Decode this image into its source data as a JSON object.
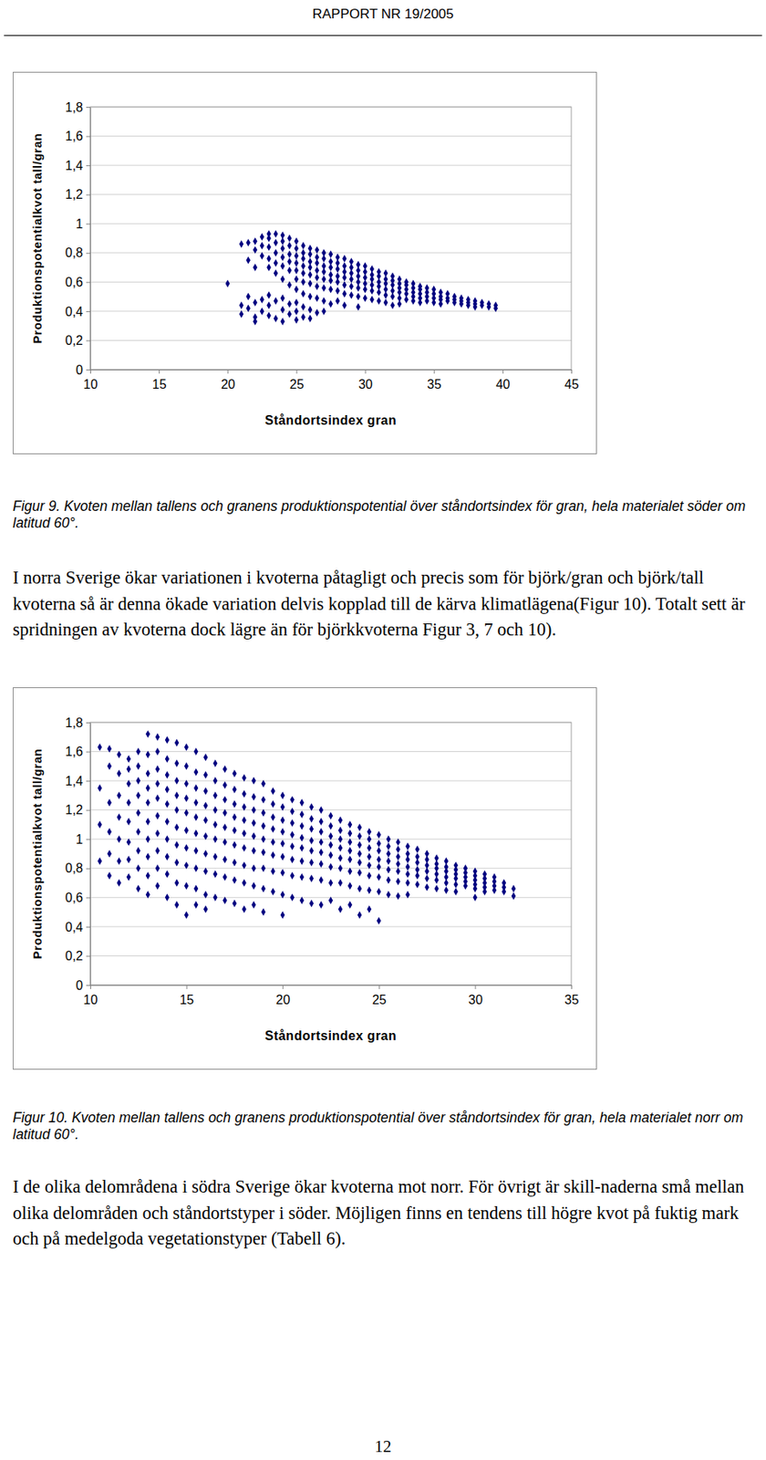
{
  "header": "RAPPORT NR 19/2005",
  "captions": [
    "Figur 9. Kvoten mellan tallens och granens produktionspotential över ståndortsindex för gran, hela materialet söder om latitud 60°.",
    "Figur 10. Kvoten mellan tallens och granens produktionspotential över ståndortsindex för gran, hela materialet norr om latitud 60°."
  ],
  "paragraphs": [
    "I norra Sverige ökar variationen i kvoterna påtagligt och precis som för björk/gran och björk/tall kvoterna så är denna ökade variation delvis kopplad till de kärva klimatlägena(Figur 10). Totalt sett är spridningen av kvoterna dock lägre än för björkkvoterna Figur 3, 7 och 10).",
    "I de olika delområdena i södra Sverige ökar kvoterna mot norr. För övrigt är skill-naderna små mellan olika delområden och ståndortstyper i söder. Möjligen finns en tendens till högre kvot på fuktig mark och på medelgoda vegetationstyper (Tabell 6)."
  ],
  "page_number": 12,
  "chart_data": [
    {
      "type": "scatter",
      "x_label": "Ståndortsindex gran",
      "y_label": "Produktionspotentialkvot tall/gran",
      "color": "#000080",
      "marker": "diamond",
      "grid": true,
      "xlim": [
        10,
        45
      ],
      "xticks": [
        10,
        15,
        20,
        25,
        30,
        35,
        40,
        45
      ],
      "ylim": [
        0,
        1.8
      ],
      "yticks": [
        0,
        {
          "value": 0.2,
          "label": "0,2"
        },
        {
          "value": 0.4,
          "label": "0,4"
        },
        {
          "value": 0.6,
          "label": "0,6"
        },
        {
          "value": 0.8,
          "label": "0,8"
        },
        1,
        {
          "value": 1.2,
          "label": "1,2"
        },
        {
          "value": 1.4,
          "label": "1,4"
        },
        {
          "value": 1.6,
          "label": "1,6"
        },
        {
          "value": 1.8,
          "label": "1,8"
        }
      ],
      "x": [
        20,
        21,
        21,
        21,
        21.5,
        21.5,
        21.5,
        21.5,
        22,
        22,
        22,
        22,
        22,
        22,
        22.5,
        22.5,
        22.5,
        22.5,
        22.5,
        23,
        23,
        23,
        23,
        23,
        23,
        23,
        23,
        23.5,
        23.5,
        23.5,
        23.5,
        23.5,
        23.5,
        23.5,
        24,
        24,
        24,
        24,
        24,
        24,
        24,
        24,
        24,
        24.5,
        24.5,
        24.5,
        24.5,
        24.5,
        24.5,
        24.5,
        24.5,
        25,
        25,
        25,
        25,
        25,
        25,
        25,
        25,
        25,
        25,
        25.5,
        25.5,
        25.5,
        25.5,
        25.5,
        25.5,
        25.5,
        25.5,
        25.5,
        26,
        26,
        26,
        26,
        26,
        26,
        26,
        26,
        26,
        26.5,
        26.5,
        26.5,
        26.5,
        26.5,
        26.5,
        26.5,
        26.5,
        27,
        27,
        27,
        27,
        27,
        27,
        27,
        27,
        27.5,
        27.5,
        27.5,
        27.5,
        27.5,
        27.5,
        27.5,
        28,
        28,
        28,
        28,
        28,
        28,
        28,
        28.5,
        28.5,
        28.5,
        28.5,
        28.5,
        28.5,
        28.5,
        29,
        29,
        29,
        29,
        29,
        29,
        29.5,
        29.5,
        29.5,
        29.5,
        29.5,
        29.5,
        29.5,
        30,
        30,
        30,
        30,
        30,
        30,
        30.5,
        30.5,
        30.5,
        30.5,
        30.5,
        30.5,
        31,
        31,
        31,
        31,
        31,
        31,
        31.5,
        31.5,
        31.5,
        31.5,
        31.5,
        31.5,
        32,
        32,
        32,
        32,
        32,
        32,
        32.5,
        32.5,
        32.5,
        32.5,
        32.5,
        32.5,
        33,
        33,
        33,
        33,
        33,
        33.5,
        33.5,
        33.5,
        33.5,
        33.5,
        34,
        34,
        34,
        34,
        34,
        34.5,
        34.5,
        34.5,
        34.5,
        35,
        35,
        35,
        35,
        35.5,
        35.5,
        35.5,
        35.5,
        36,
        36,
        36,
        36.5,
        36.5,
        36.5,
        37,
        37,
        37,
        37.5,
        37.5,
        37.5,
        38,
        38,
        38,
        38.5,
        38.5,
        39,
        39,
        39.5,
        39.5
      ],
      "values": [
        0.59,
        0.86,
        0.44,
        0.38,
        0.87,
        0.75,
        0.5,
        0.42,
        0.88,
        0.82,
        0.7,
        0.46,
        0.36,
        0.33,
        0.91,
        0.85,
        0.78,
        0.48,
        0.4,
        0.93,
        0.9,
        0.84,
        0.76,
        0.7,
        0.51,
        0.44,
        0.37,
        0.93,
        0.87,
        0.8,
        0.73,
        0.66,
        0.47,
        0.35,
        0.92,
        0.88,
        0.83,
        0.77,
        0.71,
        0.62,
        0.49,
        0.41,
        0.33,
        0.9,
        0.85,
        0.79,
        0.74,
        0.68,
        0.58,
        0.45,
        0.38,
        0.88,
        0.83,
        0.78,
        0.73,
        0.68,
        0.62,
        0.55,
        0.46,
        0.4,
        0.34,
        0.85,
        0.8,
        0.76,
        0.71,
        0.66,
        0.6,
        0.52,
        0.43,
        0.36,
        0.83,
        0.79,
        0.74,
        0.7,
        0.65,
        0.59,
        0.5,
        0.41,
        0.35,
        0.82,
        0.77,
        0.73,
        0.68,
        0.63,
        0.57,
        0.49,
        0.39,
        0.8,
        0.76,
        0.71,
        0.67,
        0.62,
        0.56,
        0.47,
        0.4,
        0.79,
        0.74,
        0.7,
        0.65,
        0.61,
        0.55,
        0.45,
        0.77,
        0.73,
        0.69,
        0.64,
        0.6,
        0.54,
        0.47,
        0.76,
        0.71,
        0.67,
        0.63,
        0.58,
        0.52,
        0.44,
        0.74,
        0.7,
        0.66,
        0.62,
        0.57,
        0.51,
        0.72,
        0.68,
        0.64,
        0.6,
        0.56,
        0.5,
        0.43,
        0.71,
        0.67,
        0.63,
        0.59,
        0.55,
        0.49,
        0.69,
        0.65,
        0.62,
        0.58,
        0.54,
        0.48,
        0.67,
        0.64,
        0.6,
        0.57,
        0.53,
        0.47,
        0.66,
        0.62,
        0.59,
        0.55,
        0.51,
        0.46,
        0.64,
        0.61,
        0.58,
        0.54,
        0.5,
        0.44,
        0.62,
        0.59,
        0.56,
        0.53,
        0.49,
        0.45,
        0.6,
        0.58,
        0.55,
        0.52,
        0.48,
        0.59,
        0.56,
        0.53,
        0.5,
        0.47,
        0.57,
        0.55,
        0.52,
        0.49,
        0.46,
        0.56,
        0.53,
        0.5,
        0.47,
        0.55,
        0.52,
        0.49,
        0.46,
        0.53,
        0.5,
        0.48,
        0.45,
        0.52,
        0.49,
        0.47,
        0.5,
        0.48,
        0.46,
        0.49,
        0.47,
        0.45,
        0.48,
        0.46,
        0.44,
        0.47,
        0.45,
        0.43,
        0.46,
        0.44,
        0.45,
        0.43,
        0.44,
        0.42
      ]
    },
    {
      "type": "scatter",
      "x_label": "Ståndortsindex gran",
      "y_label": "Produktionspotentialkvot tall/gran",
      "color": "#000080",
      "marker": "diamond",
      "grid": true,
      "xlim": [
        10,
        35
      ],
      "xticks": [
        10,
        15,
        20,
        25,
        30,
        35
      ],
      "ylim": [
        0,
        1.8
      ],
      "yticks": [
        0,
        {
          "value": 0.2,
          "label": "0,2"
        },
        {
          "value": 0.4,
          "label": "0,4"
        },
        {
          "value": 0.6,
          "label": "0,6"
        },
        {
          "value": 0.8,
          "label": "0,8"
        },
        1,
        {
          "value": 1.2,
          "label": "1,2"
        },
        {
          "value": 1.4,
          "label": "1,4"
        },
        {
          "value": 1.6,
          "label": "1,6"
        },
        {
          "value": 1.8,
          "label": "1,8"
        }
      ],
      "x": [
        10.5,
        10.5,
        10.5,
        10.5,
        11,
        11,
        11,
        11,
        11,
        11,
        11.5,
        11.5,
        11.5,
        11.5,
        11.5,
        11.5,
        11.5,
        12,
        12,
        12,
        12,
        12,
        12,
        12,
        12,
        12.5,
        12.5,
        12.5,
        12.5,
        12.5,
        12.5,
        12.5,
        12.5,
        12.5,
        13,
        13,
        13,
        13,
        13,
        13,
        13,
        13,
        13,
        13,
        13.5,
        13.5,
        13.5,
        13.5,
        13.5,
        13.5,
        13.5,
        13.5,
        13.5,
        13.5,
        14,
        14,
        14,
        14,
        14,
        14,
        14,
        14,
        14,
        14,
        14.5,
        14.5,
        14.5,
        14.5,
        14.5,
        14.5,
        14.5,
        14.5,
        14.5,
        14.5,
        15,
        15,
        15,
        15,
        15,
        15,
        15,
        15,
        15,
        15,
        15.5,
        15.5,
        15.5,
        15.5,
        15.5,
        15.5,
        15.5,
        15.5,
        15.5,
        15.5,
        16,
        16,
        16,
        16,
        16,
        16,
        16,
        16,
        16,
        16,
        16.5,
        16.5,
        16.5,
        16.5,
        16.5,
        16.5,
        16.5,
        16.5,
        16.5,
        17,
        17,
        17,
        17,
        17,
        17,
        17,
        17,
        17,
        17.5,
        17.5,
        17.5,
        17.5,
        17.5,
        17.5,
        17.5,
        17.5,
        17.5,
        18,
        18,
        18,
        18,
        18,
        18,
        18,
        18,
        18,
        18.5,
        18.5,
        18.5,
        18.5,
        18.5,
        18.5,
        18.5,
        18.5,
        18.5,
        19,
        19,
        19,
        19,
        19,
        19,
        19,
        19,
        19,
        19.5,
        19.5,
        19.5,
        19.5,
        19.5,
        19.5,
        19.5,
        19.5,
        20,
        20,
        20,
        20,
        20,
        20,
        20,
        20,
        20,
        20.5,
        20.5,
        20.5,
        20.5,
        20.5,
        20.5,
        20.5,
        20.5,
        21,
        21,
        21,
        21,
        21,
        21,
        21,
        21,
        21.5,
        21.5,
        21.5,
        21.5,
        21.5,
        21.5,
        21.5,
        21.5,
        22,
        22,
        22,
        22,
        22,
        22,
        22,
        22,
        22.5,
        22.5,
        22.5,
        22.5,
        22.5,
        22.5,
        22.5,
        22.5,
        23,
        23,
        23,
        23,
        23,
        23,
        23,
        23,
        23.5,
        23.5,
        23.5,
        23.5,
        23.5,
        23.5,
        23.5,
        23.5,
        24,
        24,
        24,
        24,
        24,
        24,
        24,
        24,
        24.5,
        24.5,
        24.5,
        24.5,
        24.5,
        24.5,
        24.5,
        24.5,
        25,
        25,
        25,
        25,
        25,
        25,
        25,
        25,
        25.5,
        25.5,
        25.5,
        25.5,
        25.5,
        25.5,
        25.5,
        26,
        26,
        26,
        26,
        26,
        26,
        26,
        26.5,
        26.5,
        26.5,
        26.5,
        26.5,
        26.5,
        26.5,
        27,
        27,
        27,
        27,
        27,
        27,
        27.5,
        27.5,
        27.5,
        27.5,
        27.5,
        27.5,
        28,
        28,
        28,
        28,
        28,
        28,
        28.5,
        28.5,
        28.5,
        28.5,
        28.5,
        28.5,
        29,
        29,
        29,
        29,
        29,
        29,
        29.5,
        29.5,
        29.5,
        29.5,
        29.5,
        30,
        30,
        30,
        30,
        30,
        30,
        30.5,
        30.5,
        30.5,
        30.5,
        30.5,
        31,
        31,
        31,
        31,
        31.5,
        31.5,
        31.5,
        32,
        32
      ],
      "values": [
        1.63,
        1.35,
        1.1,
        0.85,
        1.62,
        1.5,
        1.25,
        1.05,
        0.9,
        0.75,
        1.58,
        1.45,
        1.3,
        1.15,
        1.0,
        0.85,
        0.7,
        1.55,
        1.48,
        1.38,
        1.25,
        1.12,
        0.98,
        0.86,
        0.74,
        1.6,
        1.5,
        1.4,
        1.3,
        1.18,
        1.05,
        0.92,
        0.8,
        0.66,
        1.72,
        1.58,
        1.45,
        1.35,
        1.25,
        1.12,
        1.0,
        0.88,
        0.75,
        0.62,
        1.7,
        1.6,
        1.48,
        1.38,
        1.28,
        1.16,
        1.04,
        0.92,
        0.8,
        0.68,
        1.68,
        1.55,
        1.44,
        1.34,
        1.24,
        1.12,
        1.0,
        0.88,
        0.76,
        0.6,
        1.66,
        1.52,
        1.4,
        1.3,
        1.2,
        1.08,
        0.96,
        0.84,
        0.7,
        0.55,
        1.63,
        1.5,
        1.38,
        1.28,
        1.18,
        1.06,
        0.94,
        0.82,
        0.68,
        0.48,
        1.6,
        1.46,
        1.35,
        1.25,
        1.15,
        1.04,
        0.92,
        0.8,
        0.66,
        0.55,
        1.56,
        1.44,
        1.33,
        1.23,
        1.13,
        1.02,
        0.9,
        0.78,
        0.62,
        0.52,
        1.52,
        1.4,
        1.3,
        1.2,
        1.1,
        1.0,
        0.88,
        0.76,
        0.6,
        1.48,
        1.37,
        1.27,
        1.18,
        1.08,
        0.98,
        0.86,
        0.74,
        0.58,
        1.45,
        1.34,
        1.24,
        1.15,
        1.06,
        0.96,
        0.84,
        0.72,
        0.56,
        1.42,
        1.31,
        1.22,
        1.13,
        1.04,
        0.94,
        0.82,
        0.7,
        0.52,
        1.4,
        1.29,
        1.2,
        1.11,
        1.02,
        0.92,
        0.8,
        0.68,
        0.55,
        1.38,
        1.27,
        1.18,
        1.09,
        1.0,
        0.91,
        0.8,
        0.66,
        0.5,
        1.33,
        1.24,
        1.15,
        1.07,
        0.98,
        0.89,
        0.78,
        0.64,
        1.3,
        1.22,
        1.13,
        1.05,
        0.97,
        0.88,
        0.77,
        0.62,
        0.48,
        1.27,
        1.19,
        1.11,
        1.03,
        0.95,
        0.86,
        0.75,
        0.6,
        1.25,
        1.17,
        1.09,
        1.01,
        0.94,
        0.85,
        0.74,
        0.58,
        1.22,
        1.14,
        1.07,
        0.99,
        0.92,
        0.84,
        0.73,
        0.56,
        1.2,
        1.12,
        1.05,
        0.98,
        0.91,
        0.83,
        0.72,
        0.55,
        1.16,
        1.09,
        1.02,
        0.96,
        0.89,
        0.81,
        0.7,
        0.58,
        1.13,
        1.06,
        1.0,
        0.94,
        0.87,
        0.8,
        0.7,
        0.52,
        1.1,
        1.04,
        0.98,
        0.92,
        0.86,
        0.78,
        0.68,
        0.55,
        1.08,
        1.02,
        0.96,
        0.9,
        0.84,
        0.77,
        0.66,
        0.48,
        1.05,
        1.0,
        0.94,
        0.88,
        0.82,
        0.75,
        0.65,
        0.52,
        1.03,
        0.97,
        0.92,
        0.86,
        0.81,
        0.74,
        0.64,
        0.44,
        1.0,
        0.95,
        0.9,
        0.85,
        0.79,
        0.72,
        0.62,
        0.98,
        0.93,
        0.88,
        0.83,
        0.78,
        0.71,
        0.61,
        0.95,
        0.9,
        0.86,
        0.81,
        0.76,
        0.7,
        0.62,
        0.93,
        0.88,
        0.84,
        0.79,
        0.75,
        0.69,
        0.9,
        0.86,
        0.82,
        0.78,
        0.73,
        0.67,
        0.87,
        0.83,
        0.8,
        0.76,
        0.72,
        0.66,
        0.85,
        0.81,
        0.78,
        0.74,
        0.7,
        0.65,
        0.82,
        0.79,
        0.76,
        0.73,
        0.69,
        0.64,
        0.8,
        0.77,
        0.74,
        0.71,
        0.68,
        0.78,
        0.75,
        0.72,
        0.69,
        0.66,
        0.6,
        0.76,
        0.73,
        0.7,
        0.67,
        0.64,
        0.74,
        0.71,
        0.68,
        0.65,
        0.7,
        0.67,
        0.64,
        0.66,
        0.61
      ]
    }
  ]
}
